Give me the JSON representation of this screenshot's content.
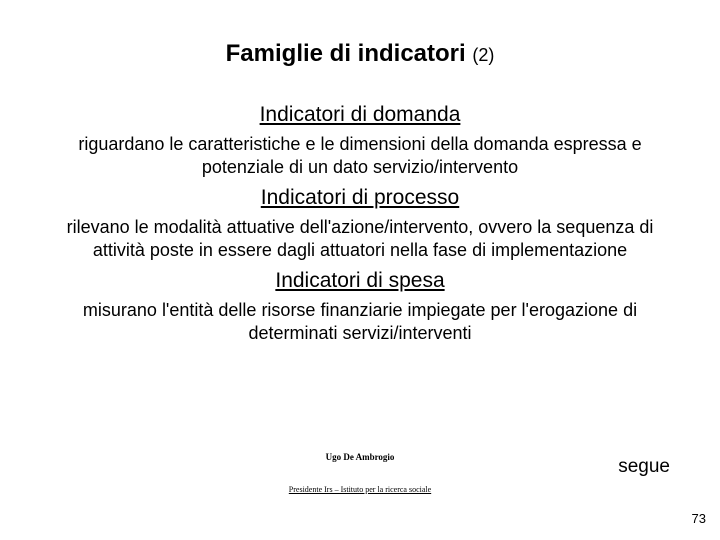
{
  "title_main": "Famiglie di indicatori ",
  "title_sub": "(2)",
  "sections": [
    {
      "heading": "Indicatori di domanda",
      "body": "riguardano le caratteristiche e le dimensioni della domanda espressa e potenziale di un dato servizio/intervento"
    },
    {
      "heading": "Indicatori di processo",
      "body": "rilevano le modalità attuative dell'azione/intervento, ovvero la sequenza di attività poste in essere dagli attuatori nella fase di implementazione"
    },
    {
      "heading": "Indicatori di spesa",
      "body": "misurano l'entità delle risorse finanziarie impiegate per l'erogazione di determinati servizi/interventi"
    }
  ],
  "footer_author": "Ugo De Ambrogio",
  "footer_org": "Presidente Irs – Istituto per la ricerca sociale",
  "segue": "segue",
  "page_number": "73"
}
